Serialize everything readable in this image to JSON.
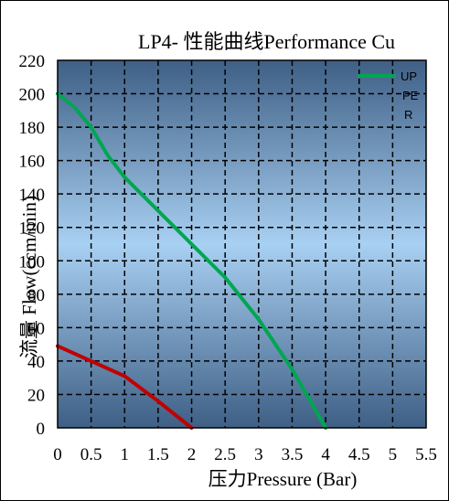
{
  "chart_data": {
    "type": "line",
    "title": "LP4- 性能曲线Performance Cu",
    "xlabel": "压力Pressure (Bar)",
    "ylabel": "流量 Flow(ccm/min)",
    "xlim": [
      0,
      5.5
    ],
    "ylim": [
      0,
      220
    ],
    "xticks": [
      "0",
      "0.5",
      "1",
      "1.5",
      "2",
      "2.5",
      "3",
      "3.5",
      "4",
      "4.5",
      "5",
      "5.5"
    ],
    "yticks": [
      "0",
      "20",
      "40",
      "60",
      "80",
      "100",
      "120",
      "140",
      "160",
      "180",
      "200",
      "220"
    ],
    "grid": true,
    "legend": {
      "position": "top-right",
      "lines": [
        "UP",
        "PE",
        "R"
      ]
    },
    "series": [
      {
        "name": "UPPER",
        "color": "#00a651",
        "x": [
          0,
          0.25,
          0.5,
          0.75,
          1,
          1.5,
          2,
          2.5,
          3,
          3.5,
          4
        ],
        "y": [
          200,
          192,
          180,
          163,
          150,
          130,
          110,
          90,
          65,
          35,
          0
        ]
      },
      {
        "name": "",
        "color": "#c00000",
        "x": [
          0,
          0.5,
          1,
          1.5,
          2
        ],
        "y": [
          49,
          40,
          31,
          16,
          0
        ]
      }
    ]
  }
}
